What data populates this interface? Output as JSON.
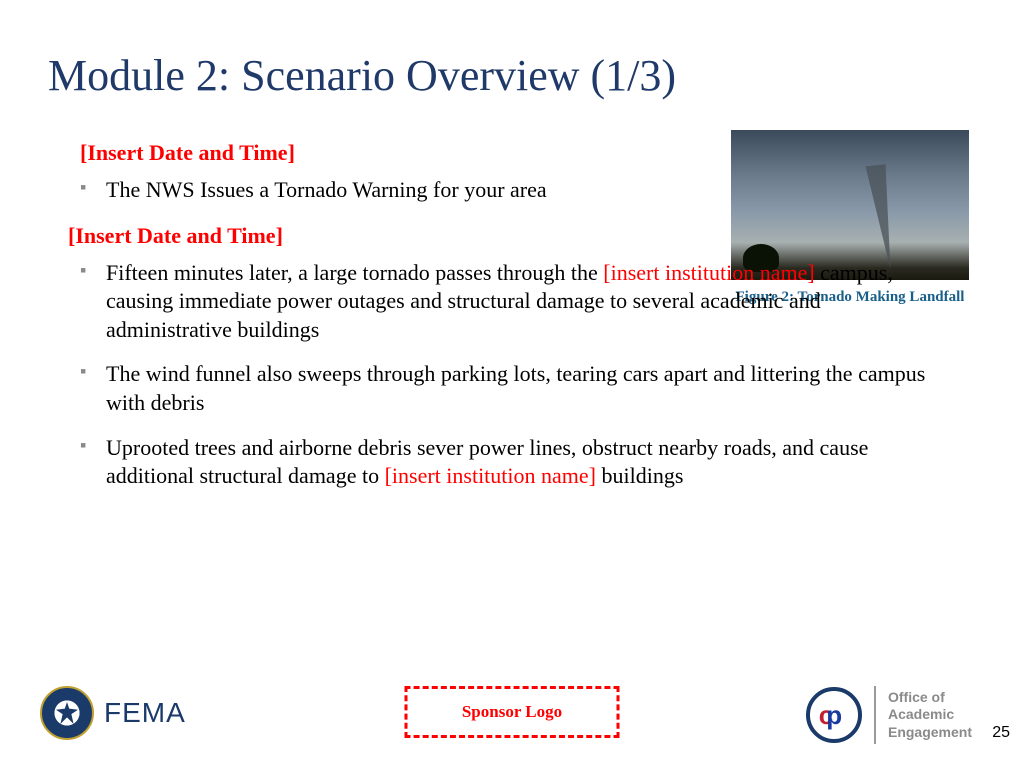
{
  "title": "Module 2: Scenario Overview (1/3)",
  "title_color": "#1f3a68",
  "section1": {
    "header": "[Insert Date and Time]",
    "bullet": "The NWS Issues a Tornado Warning for your area"
  },
  "section2": {
    "header": "[Insert Date and Time]",
    "bullet1_pre": "Fifteen minutes later, a large tornado passes through the ",
    "bullet1_insert": "[insert institution name]",
    "bullet1_post": " campus, causing immediate power outages and structural damage to several academic and administrative buildings",
    "bullet2": "The wind funnel also sweeps through parking lots, tearing cars apart and littering the campus with debris",
    "bullet3_pre": "Uprooted trees and airborne debris sever power lines, obstruct nearby roads, and cause additional structural damage to ",
    "bullet3_insert": "[insert institution name]",
    "bullet3_post": " buildings"
  },
  "figure": {
    "caption": "Figure 2: Tornado Making Landfall",
    "caption_color": "#1a5f8a"
  },
  "footer": {
    "fema": "FEMA",
    "sponsor": "Sponsor Logo",
    "oae_line1": "Office of",
    "oae_line2": "Academic",
    "oae_line3": "Engagement",
    "page_number": "25"
  },
  "colors": {
    "placeholder_red": "#ff0000",
    "bullet_marker": "#8a8a8a",
    "body_text": "#000000"
  }
}
